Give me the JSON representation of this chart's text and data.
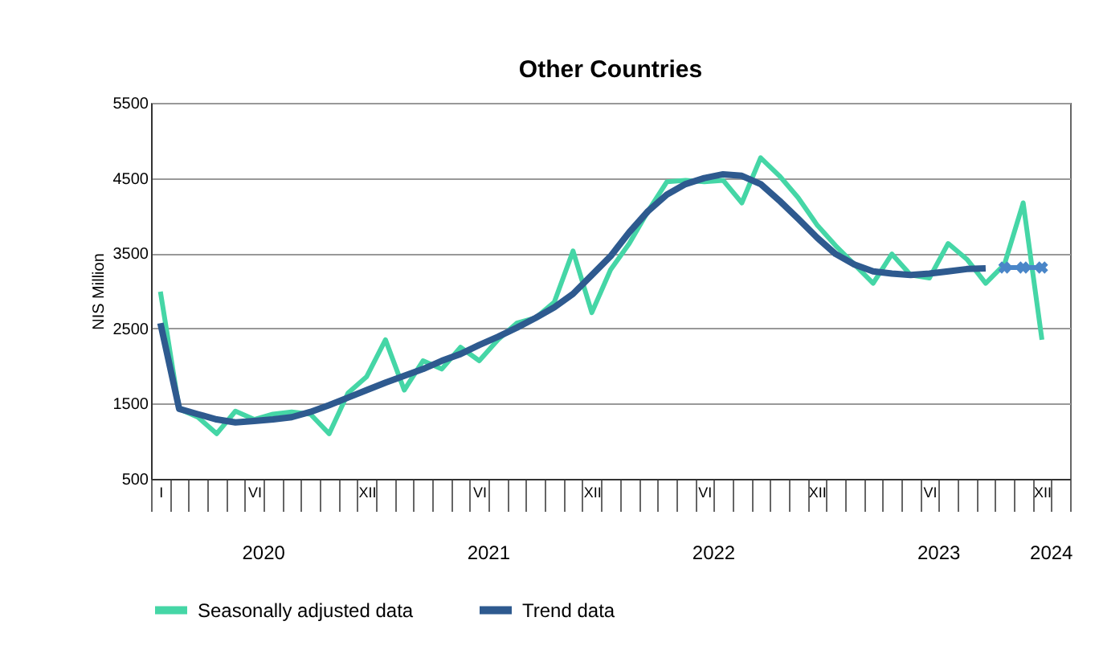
{
  "chart_data": {
    "type": "line",
    "title": "Other Countries",
    "ylabel": "NIS Million",
    "categories": [
      "I",
      null,
      null,
      null,
      null,
      "VI",
      null,
      null,
      null,
      null,
      null,
      "XII",
      null,
      null,
      null,
      null,
      null,
      "VI",
      null,
      null,
      null,
      null,
      null,
      "XII",
      null,
      null,
      null,
      null,
      null,
      "VI",
      null,
      null,
      null,
      null,
      null,
      "XII",
      null,
      null,
      null,
      null,
      null,
      "VI",
      null,
      null,
      null,
      null,
      null,
      "XII",
      null
    ],
    "series": [
      {
        "name": "Seasonally adjusted data",
        "color": "#45d6a6",
        "values": [
          2990,
          1430,
          1320,
          1100,
          1400,
          1290,
          1360,
          1390,
          1360,
          1100,
          1640,
          1860,
          2350,
          1680,
          2070,
          1960,
          2250,
          2070,
          2350,
          2570,
          2640,
          2850,
          3530,
          2710,
          3280,
          3630,
          4060,
          4450,
          4470,
          4450,
          4470,
          4170,
          4770,
          4530,
          4240,
          3880,
          3600,
          3350,
          3100,
          3490,
          3210,
          3170,
          3630,
          3420,
          3100,
          3350,
          4170,
          2350,
          null
        ]
      },
      {
        "name": "Trend data",
        "color": "#2e5a8f",
        "values": [
          2570,
          1430,
          1360,
          1290,
          1250,
          1270,
          1290,
          1320,
          1390,
          1480,
          1580,
          1680,
          1780,
          1870,
          1960,
          2070,
          2160,
          2280,
          2390,
          2510,
          2640,
          2780,
          2960,
          3210,
          3460,
          3780,
          4060,
          4280,
          4420,
          4500,
          4550,
          4530,
          4420,
          4200,
          3960,
          3710,
          3490,
          3350,
          3260,
          3230,
          3210,
          3230,
          3260,
          3290,
          3300,
          null,
          null,
          null,
          null
        ]
      },
      {
        "color": "#4a86c8",
        "marker": "cross",
        "values": [
          null,
          null,
          null,
          null,
          null,
          null,
          null,
          null,
          null,
          null,
          null,
          null,
          null,
          null,
          null,
          null,
          null,
          null,
          null,
          null,
          null,
          null,
          null,
          null,
          null,
          null,
          null,
          null,
          null,
          null,
          null,
          null,
          null,
          null,
          null,
          null,
          null,
          null,
          null,
          null,
          null,
          null,
          null,
          null,
          null,
          3310,
          3310,
          3310,
          null
        ]
      }
    ],
    "ylim": [
      500,
      5500
    ],
    "yticks": [
      500,
      1500,
      2500,
      3500,
      4500,
      5500
    ],
    "grid": "y",
    "legend": "bottom",
    "annotations": [
      "2020",
      "2021",
      "2022",
      "2023",
      "2024"
    ]
  }
}
